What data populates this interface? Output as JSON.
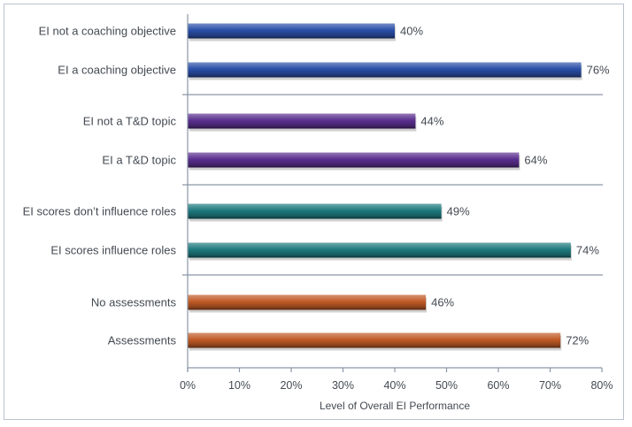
{
  "chart_data": {
    "type": "bar",
    "orientation": "horizontal",
    "title": "",
    "xlabel": "Level of Overall EI Performance",
    "ylabel": "",
    "xlim": [
      0,
      80
    ],
    "ticks": [
      "0%",
      "10%",
      "20%",
      "30%",
      "40%",
      "50%",
      "60%",
      "70%",
      "80%"
    ],
    "grid": false,
    "groups": [
      {
        "color": "#2a4fa8",
        "categories": [
          "EI not a coaching objective",
          "EI a coaching objective"
        ],
        "values": [
          40,
          76
        ],
        "labels": [
          "40%",
          "76%"
        ]
      },
      {
        "color": "#5a2f8f",
        "categories": [
          "EI not a T&D topic",
          "EI a T&D topic"
        ],
        "values": [
          44,
          64
        ],
        "labels": [
          "44%",
          "64%"
        ]
      },
      {
        "color": "#1e7a7e",
        "categories": [
          "EI scores don’t influence roles",
          "EI scores influence roles"
        ],
        "values": [
          49,
          74
        ],
        "labels": [
          "49%",
          "74%"
        ]
      },
      {
        "color": "#c05a26",
        "categories": [
          "No assessments",
          "Assessments"
        ],
        "values": [
          46,
          72
        ],
        "labels": [
          "46%",
          "72%"
        ]
      }
    ]
  }
}
